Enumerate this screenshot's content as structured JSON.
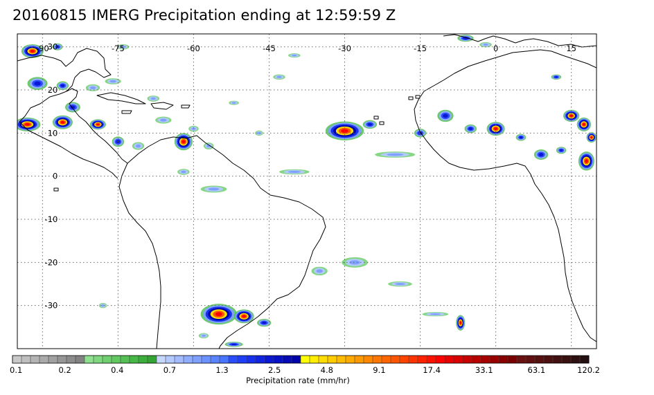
{
  "title": "20160815 IMERG Precipitation ending at 12:59:59 Z",
  "map": {
    "projection": "equirectangular",
    "lon_range": [
      -95,
      20
    ],
    "lat_range": [
      -40,
      33
    ],
    "grid_style": "dotted",
    "lon_labels": [
      {
        "value": -90,
        "text": "-90"
      },
      {
        "value": -75,
        "text": "-75"
      },
      {
        "value": -60,
        "text": "-60"
      },
      {
        "value": -45,
        "text": "-45"
      },
      {
        "value": -30,
        "text": "-30"
      },
      {
        "value": -15,
        "text": "-15"
      },
      {
        "value": 0,
        "text": "0"
      },
      {
        "value": 15,
        "text": "15"
      }
    ],
    "lat_labels": [
      {
        "value": 30,
        "text": "30"
      },
      {
        "value": 20,
        "text": "20"
      },
      {
        "value": 10,
        "text": "10"
      },
      {
        "value": 0,
        "text": "0"
      },
      {
        "value": -10,
        "text": "-10"
      },
      {
        "value": -20,
        "text": "-20"
      },
      {
        "value": -30,
        "text": "-30"
      }
    ]
  },
  "colorbar": {
    "label": "Precipitation rate (mm/hr)",
    "tick_labels": [
      "0.1",
      "0.2",
      "0.4",
      "0.7",
      "1.3",
      "2.5",
      "4.8",
      "9.1",
      "17.4",
      "33.1",
      "63.1",
      "120.2"
    ],
    "colors": [
      "#c8c8c8",
      "#bebebe",
      "#b4b4b4",
      "#aaaaaa",
      "#a0a0a0",
      "#969696",
      "#8c8c8c",
      "#828282",
      "#8fe08f",
      "#7fd87f",
      "#70d070",
      "#62c862",
      "#54c054",
      "#46b846",
      "#3cae3c",
      "#34a434",
      "#c6d8ff",
      "#b4caff",
      "#a2bcff",
      "#90aeff",
      "#7ea0ff",
      "#6c92ff",
      "#5a84ff",
      "#4876ff",
      "#2a4cff",
      "#1e3ef8",
      "#1630ee",
      "#1024e0",
      "#0a18d2",
      "#0610c4",
      "#030ab6",
      "#0004a8",
      "#ffff00",
      "#ffee00",
      "#ffdd00",
      "#ffcc00",
      "#ffbb00",
      "#ffaa00",
      "#ff9900",
      "#ff8800",
      "#ff7700",
      "#ff6600",
      "#ff5500",
      "#ff4400",
      "#ff3300",
      "#ff2200",
      "#ff1100",
      "#ff0000",
      "#e80000",
      "#d80000",
      "#c80000",
      "#b80000",
      "#a80000",
      "#980000",
      "#880000",
      "#780000",
      "#6a1010",
      "#601010",
      "#561010",
      "#4c1010",
      "#421010",
      "#381010",
      "#2e1010",
      "#241010"
    ]
  },
  "precip_cells": [
    {
      "lon": -92,
      "lat": 29,
      "rx": 2.2,
      "ry": 1.6,
      "level": "high"
    },
    {
      "lon": -87,
      "lat": 30,
      "rx": 1.0,
      "ry": 0.8,
      "level": "med"
    },
    {
      "lon": -91,
      "lat": 21.5,
      "rx": 2.0,
      "ry": 1.5,
      "level": "med"
    },
    {
      "lon": -86,
      "lat": 21,
      "rx": 1.2,
      "ry": 1.0,
      "level": "med"
    },
    {
      "lon": -80,
      "lat": 20.5,
      "rx": 1.4,
      "ry": 0.8,
      "level": "low"
    },
    {
      "lon": -76,
      "lat": 22,
      "rx": 1.6,
      "ry": 0.7,
      "level": "low"
    },
    {
      "lon": -84,
      "lat": 16,
      "rx": 1.5,
      "ry": 1.2,
      "level": "med"
    },
    {
      "lon": -93,
      "lat": 12,
      "rx": 2.6,
      "ry": 1.6,
      "level": "high"
    },
    {
      "lon": -86,
      "lat": 12.5,
      "rx": 2.0,
      "ry": 1.6,
      "level": "high"
    },
    {
      "lon": -79,
      "lat": 12,
      "rx": 1.6,
      "ry": 1.2,
      "level": "high"
    },
    {
      "lon": -75,
      "lat": 8,
      "rx": 1.2,
      "ry": 1.2,
      "level": "med"
    },
    {
      "lon": -71,
      "lat": 7,
      "rx": 1.2,
      "ry": 0.9,
      "level": "low"
    },
    {
      "lon": -62,
      "lat": 8,
      "rx": 1.8,
      "ry": 2.0,
      "level": "high"
    },
    {
      "lon": -57,
      "lat": 7,
      "rx": 1.0,
      "ry": 0.8,
      "level": "low"
    },
    {
      "lon": -66,
      "lat": 13,
      "rx": 1.6,
      "ry": 0.8,
      "level": "low"
    },
    {
      "lon": -60,
      "lat": 11,
      "rx": 1.0,
      "ry": 0.7,
      "level": "low"
    },
    {
      "lon": -47,
      "lat": 10,
      "rx": 0.8,
      "ry": 0.6,
      "level": "low"
    },
    {
      "lon": -30,
      "lat": 10.5,
      "rx": 3.8,
      "ry": 2.2,
      "level": "high"
    },
    {
      "lon": -25,
      "lat": 12,
      "rx": 1.4,
      "ry": 1.0,
      "level": "med"
    },
    {
      "lon": -15,
      "lat": 10,
      "rx": 1.2,
      "ry": 1.0,
      "level": "med"
    },
    {
      "lon": -10,
      "lat": 14,
      "rx": 1.6,
      "ry": 1.4,
      "level": "med"
    },
    {
      "lon": -5,
      "lat": 11,
      "rx": 1.2,
      "ry": 1.0,
      "level": "med"
    },
    {
      "lon": 0,
      "lat": 11,
      "rx": 1.8,
      "ry": 1.6,
      "level": "high"
    },
    {
      "lon": 5,
      "lat": 9,
      "rx": 1.0,
      "ry": 0.8,
      "level": "med"
    },
    {
      "lon": 9,
      "lat": 5,
      "rx": 1.4,
      "ry": 1.2,
      "level": "med"
    },
    {
      "lon": 15,
      "lat": 14,
      "rx": 1.6,
      "ry": 1.4,
      "level": "high"
    },
    {
      "lon": 17.5,
      "lat": 12,
      "rx": 1.4,
      "ry": 1.6,
      "level": "high"
    },
    {
      "lon": 18,
      "lat": 3.5,
      "rx": 1.6,
      "ry": 2.2,
      "level": "high"
    },
    {
      "lon": 13,
      "lat": 6,
      "rx": 1.0,
      "ry": 0.8,
      "level": "med"
    },
    {
      "lon": -6,
      "lat": 32,
      "rx": 1.6,
      "ry": 0.8,
      "level": "med"
    },
    {
      "lon": -2,
      "lat": 30.5,
      "rx": 1.2,
      "ry": 0.6,
      "level": "low"
    },
    {
      "lon": -55,
      "lat": -32,
      "rx": 3.6,
      "ry": 2.4,
      "level": "high"
    },
    {
      "lon": -50,
      "lat": -32.5,
      "rx": 2.0,
      "ry": 1.6,
      "level": "high"
    },
    {
      "lon": -46,
      "lat": -34,
      "rx": 1.4,
      "ry": 0.9,
      "level": "med"
    },
    {
      "lon": -52,
      "lat": -39,
      "rx": 1.8,
      "ry": 0.6,
      "level": "med"
    },
    {
      "lon": -7,
      "lat": -34,
      "rx": 0.9,
      "ry": 1.8,
      "level": "high"
    },
    {
      "lon": -19,
      "lat": -25,
      "rx": 2.4,
      "ry": 0.6,
      "level": "low"
    },
    {
      "lon": -12,
      "lat": -32,
      "rx": 2.6,
      "ry": 0.5,
      "level": "low"
    },
    {
      "lon": -40,
      "lat": 1,
      "rx": 3.0,
      "ry": 0.6,
      "level": "low"
    },
    {
      "lon": -20,
      "lat": 5,
      "rx": 4.0,
      "ry": 0.7,
      "level": "low"
    },
    {
      "lon": -56,
      "lat": -3,
      "rx": 2.6,
      "ry": 0.8,
      "level": "low"
    },
    {
      "lon": -62,
      "lat": 1,
      "rx": 1.2,
      "ry": 0.7,
      "level": "low"
    },
    {
      "lon": -68,
      "lat": 18,
      "rx": 1.2,
      "ry": 0.7,
      "level": "low"
    },
    {
      "lon": -52,
      "lat": 17,
      "rx": 1.0,
      "ry": 0.5,
      "level": "low"
    },
    {
      "lon": -43,
      "lat": 23,
      "rx": 1.2,
      "ry": 0.6,
      "level": "low"
    },
    {
      "lon": -40,
      "lat": 28,
      "rx": 1.2,
      "ry": 0.5,
      "level": "low"
    },
    {
      "lon": -74,
      "lat": 30,
      "rx": 1.2,
      "ry": 0.6,
      "level": "low"
    },
    {
      "lon": 12,
      "lat": 23,
      "rx": 1.0,
      "ry": 0.6,
      "level": "med"
    },
    {
      "lon": 19,
      "lat": 9,
      "rx": 1.0,
      "ry": 1.2,
      "level": "high"
    },
    {
      "lon": -28,
      "lat": -20,
      "rx": 2.6,
      "ry": 1.2,
      "level": "low"
    },
    {
      "lon": -35,
      "lat": -22,
      "rx": 1.6,
      "ry": 1.0,
      "level": "low"
    },
    {
      "lon": -58,
      "lat": -37,
      "rx": 1.0,
      "ry": 0.6,
      "level": "low"
    },
    {
      "lon": -78,
      "lat": -30,
      "rx": 0.8,
      "ry": 0.6,
      "level": "low"
    }
  ]
}
